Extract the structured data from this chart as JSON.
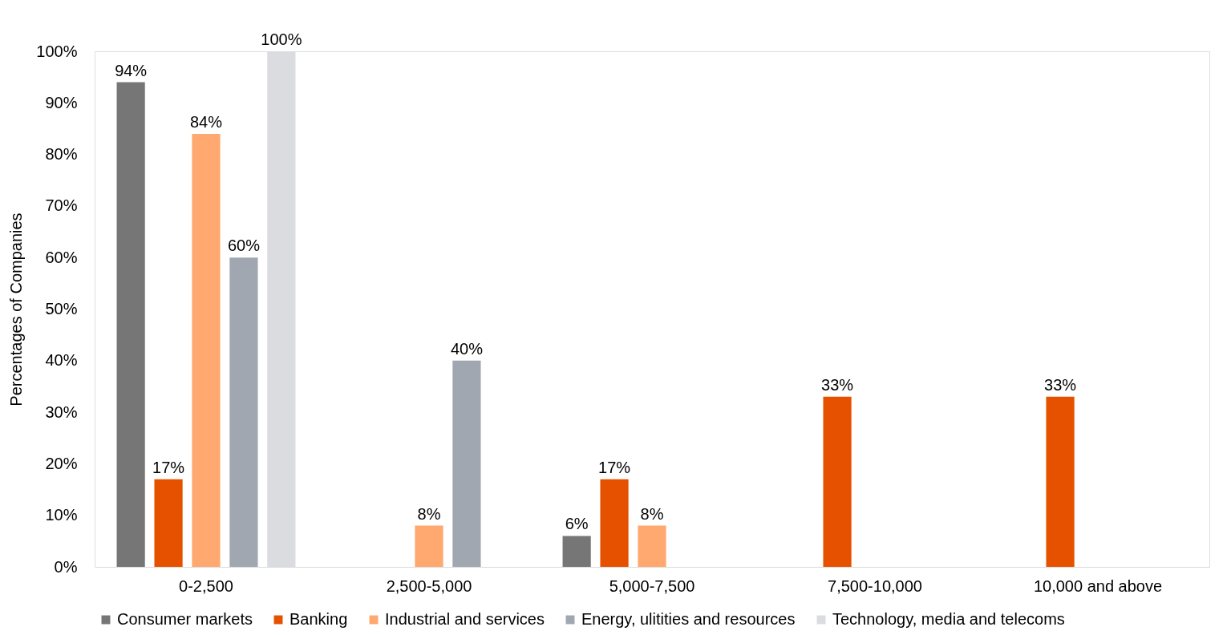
{
  "chart_data": {
    "type": "bar",
    "ylabel": "Percentages of Companies",
    "categories": [
      "0-2,500",
      "2,500-5,000",
      "5,000-7,500",
      "7,500-10,000",
      "10,000 and above"
    ],
    "ylim": [
      0,
      100
    ],
    "yticks": [
      {
        "value": 0,
        "label": "0%"
      },
      {
        "value": 10,
        "label": "10%"
      },
      {
        "value": 20,
        "label": "20%"
      },
      {
        "value": 30,
        "label": "30%"
      },
      {
        "value": 40,
        "label": "40%"
      },
      {
        "value": 50,
        "label": "50%"
      },
      {
        "value": 60,
        "label": "60%"
      },
      {
        "value": 70,
        "label": "70%"
      },
      {
        "value": 80,
        "label": "80%"
      },
      {
        "value": 90,
        "label": "90%"
      },
      {
        "value": 100,
        "label": "100%"
      }
    ],
    "grid": false,
    "legend": "bottom",
    "series": [
      {
        "name": "Consumer markets",
        "color": "#767676",
        "values": [
          94,
          null,
          6,
          null,
          null
        ],
        "value_labels": [
          "94%",
          null,
          "6%",
          null,
          null
        ]
      },
      {
        "name": "Banking",
        "color": "#e65100",
        "values": [
          17,
          null,
          17,
          33,
          33
        ],
        "value_labels": [
          "17%",
          null,
          "17%",
          "33%",
          "33%"
        ]
      },
      {
        "name": "Industrial and services",
        "color": "#ffa86f",
        "values": [
          84,
          8,
          8,
          null,
          null
        ],
        "value_labels": [
          "84%",
          "8%",
          "8%",
          null,
          null
        ]
      },
      {
        "name": "Energy, ulitities and resources",
        "color": "#a1a7b1",
        "values": [
          60,
          40,
          null,
          null,
          null
        ],
        "value_labels": [
          "60%",
          "40%",
          null,
          null,
          null
        ]
      },
      {
        "name": "Technology, media and telecoms",
        "color": "#dadce0",
        "values": [
          100,
          null,
          null,
          null,
          null
        ],
        "value_labels": [
          "100%",
          null,
          null,
          null,
          null
        ]
      }
    ]
  }
}
